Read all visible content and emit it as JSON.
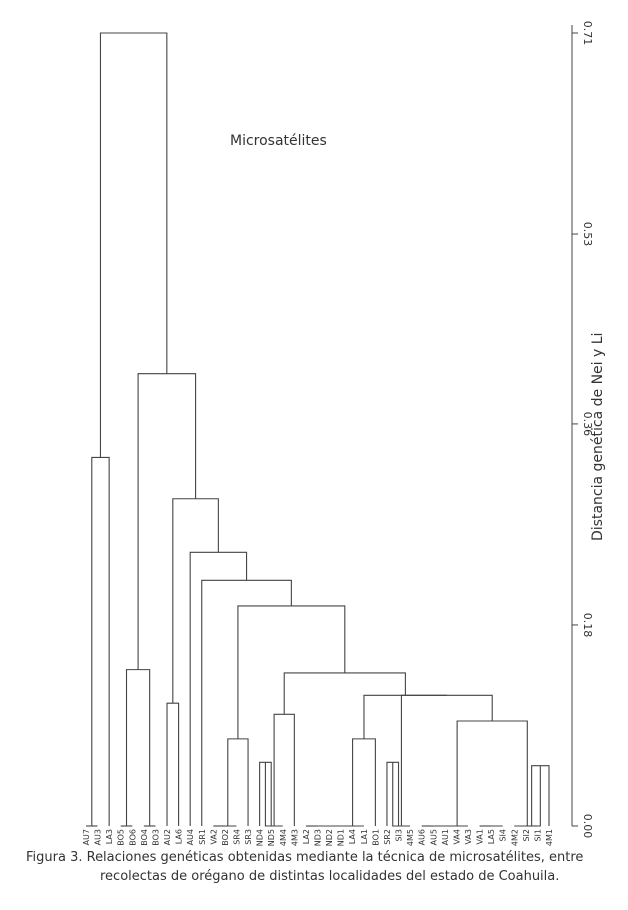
{
  "chart_data": {
    "type": "dendrogram",
    "title": "Microsatélites",
    "ylabel": "Distancia genética de Nei y Li",
    "ylim": [
      0.0,
      0.71
    ],
    "y_ticks": [
      {
        "value": 0.0,
        "label": "0.00"
      },
      {
        "value": 0.18,
        "label": "0.18"
      },
      {
        "value": 0.36,
        "label": "0.36"
      },
      {
        "value": 0.53,
        "label": "0.53"
      },
      {
        "value": 0.71,
        "label": "0.71"
      }
    ],
    "leaves": [
      "AU7",
      "AU3",
      "LA3",
      "BO5",
      "BO6",
      "BO4",
      "BO3",
      "AU2",
      "LA6",
      "AU4",
      "SR1",
      "VA2",
      "BO2",
      "SR4",
      "SR3",
      "ND4",
      "ND5",
      "4M4",
      "4M3",
      "LA2",
      "ND3",
      "ND2",
      "ND1",
      "LA4",
      "LA1",
      "BO1",
      "SR2",
      "SI3",
      "4M5",
      "AU6",
      "AU5",
      "AU1",
      "VA4",
      "VA3",
      "VA1",
      "LA5",
      "SI4",
      "4M2",
      "SI2",
      "SI1",
      "4M1"
    ],
    "merges": [
      {
        "a": [
          "AU7"
        ],
        "b": [
          "AU3"
        ],
        "height": 0.0
      },
      {
        "a": [
          "AU7",
          "AU3"
        ],
        "b": [
          "LA3"
        ],
        "height": 0.33
      },
      {
        "a": [
          "BO5"
        ],
        "b": [
          "BO6"
        ],
        "height": 0.0
      },
      {
        "a": [
          "BO4"
        ],
        "b": [
          "BO3"
        ],
        "height": 0.0
      },
      {
        "a": [
          "BO5",
          "BO6"
        ],
        "b": [
          "BO4",
          "BO3"
        ],
        "height": 0.14
      },
      {
        "a": [
          "AU2"
        ],
        "b": [
          "LA6"
        ],
        "height": 0.11
      },
      {
        "a": [
          "VA2"
        ],
        "b": [
          "BO2"
        ],
        "height": 0.0
      },
      {
        "a": [
          "VA2",
          "BO2"
        ],
        "b": [
          "SR4"
        ],
        "height": 0.0
      },
      {
        "a": [
          "VA2",
          "BO2",
          "SR4"
        ],
        "b": [
          "SR3"
        ],
        "height": 0.078
      },
      {
        "a": [
          "ND4"
        ],
        "b": [
          "ND5"
        ],
        "height": 0.057
      },
      {
        "a": [
          "ND4",
          "ND5"
        ],
        "b": [
          "4M4"
        ],
        "height": 0.0
      },
      {
        "a": [
          "ND4",
          "ND5",
          "4M4"
        ],
        "b": [
          "4M3"
        ],
        "height": 0.1
      },
      {
        "a": [
          "LA2"
        ],
        "b": [
          "ND3"
        ],
        "height": 0.0
      },
      {
        "a": [
          "LA2",
          "ND3"
        ],
        "b": [
          "ND2"
        ],
        "height": 0.0
      },
      {
        "a": [
          "LA2",
          "ND3",
          "ND2"
        ],
        "b": [
          "ND1"
        ],
        "height": 0.0
      },
      {
        "a": [
          "LA2",
          "ND3",
          "ND2",
          "ND1"
        ],
        "b": [
          "LA4"
        ],
        "height": 0.0
      },
      {
        "a": [
          "LA2",
          "ND3",
          "ND2",
          "ND1",
          "LA4"
        ],
        "b": [
          "LA1"
        ],
        "height": 0.0
      },
      {
        "a": [
          "LA2",
          "ND3",
          "ND2",
          "ND1",
          "LA4",
          "LA1"
        ],
        "b": [
          "BO1"
        ],
        "height": 0.078
      },
      {
        "a": [
          "SR2"
        ],
        "b": [
          "SI3"
        ],
        "height": 0.057
      },
      {
        "a": [
          "SR2",
          "SI3"
        ],
        "b": [
          "4M5"
        ],
        "height": 0.0
      },
      {
        "a": [
          "AU6"
        ],
        "b": [
          "AU5"
        ],
        "height": 0.0
      },
      {
        "a": [
          "AU6",
          "AU5"
        ],
        "b": [
          "AU1"
        ],
        "height": 0.0
      },
      {
        "a": [
          "AU6",
          "AU5",
          "AU1"
        ],
        "b": [
          "VA4"
        ],
        "height": 0.0
      },
      {
        "a": [
          "VA4"
        ],
        "b": [
          "VA3"
        ],
        "height": 0.0
      },
      {
        "a": [
          "VA1"
        ],
        "b": [
          "LA5"
        ],
        "height": 0.0
      },
      {
        "a": [
          "VA1",
          "LA5"
        ],
        "b": [
          "SI4"
        ],
        "height": 0.0
      },
      {
        "a": [
          "AU6",
          "AU5",
          "AU1",
          "VA4"
        ],
        "b": [
          "VA3",
          "VA1",
          "LA5",
          "SI4"
        ],
        "height": 0.074
      },
      {
        "a": [
          "SI2"
        ],
        "b": [
          "SI1"
        ],
        "height": 0.0
      },
      {
        "a": [
          "SI2",
          "SI1"
        ],
        "b": [
          "4M1"
        ],
        "height": 0.054
      },
      {
        "a": [
          "4M2"
        ],
        "b": [
          "SI2",
          "SI1",
          "4M1"
        ],
        "height": 0.0
      },
      {
        "a": [
          "AU6",
          "VA1"
        ],
        "b": [
          "4M2",
          "SI1"
        ],
        "height": 0.094
      },
      {
        "a": [
          "SR2",
          "SI3",
          "4M5"
        ],
        "b": [
          "AU6",
          "VA1",
          "4M2",
          "SI1"
        ],
        "height": 0.117
      },
      {
        "a": [
          "LA2",
          "BO1"
        ],
        "b": [
          "SR2",
          "4M1"
        ],
        "height": 0.117
      },
      {
        "a": [
          "ND4",
          "4M3"
        ],
        "b": [
          "LA2",
          "4M1"
        ],
        "height": 0.137
      },
      {
        "a": [
          "VA2",
          "SR3"
        ],
        "b": [
          "ND4",
          "4M1"
        ],
        "height": 0.197
      },
      {
        "a": [
          "SR1"
        ],
        "b": [
          "VA2",
          "4M1"
        ],
        "height": 0.22
      },
      {
        "a": [
          "AU4"
        ],
        "b": [
          "SR1",
          "4M1"
        ],
        "height": 0.245
      },
      {
        "a": [
          "AU2",
          "LA6"
        ],
        "b": [
          "AU4",
          "4M1"
        ],
        "height": 0.293
      },
      {
        "a": [
          "BO5",
          "BO3"
        ],
        "b": [
          "AU2",
          "4M1"
        ],
        "height": 0.405
      },
      {
        "a": [
          "AU7",
          "LA3"
        ],
        "b": [
          "BO5",
          "4M1"
        ],
        "height": 0.71
      }
    ],
    "caption_line1": "Figura 3. Relaciones genéticas obtenidas mediante la técnica de microsatélites, entre",
    "caption_line2": "recolectas de orégano de distintas localidades del estado de Coahuila."
  }
}
